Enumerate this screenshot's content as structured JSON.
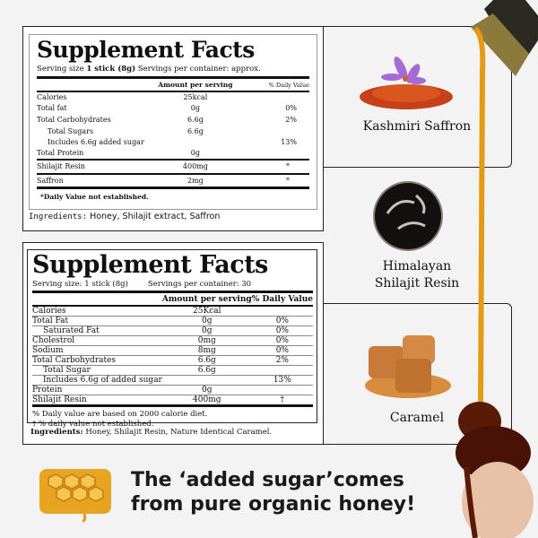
{
  "facts1": {
    "title": "Supplement Facts",
    "serving_label": "Serving size",
    "serving_value": "1 stick (8g)",
    "servings_container": "Servings per container: approx.",
    "header_amount": "Amount per serving",
    "header_dv": "% Daily Value",
    "rows": [
      {
        "name": "Calories",
        "amount": "25kcal",
        "dv": ""
      },
      {
        "name": "Total fat",
        "amount": "0g",
        "dv": "0%"
      },
      {
        "name": "Total Carbohydrates",
        "amount": "6.6g",
        "dv": "2%"
      },
      {
        "name": "Total Sugars",
        "amount": "6.6g",
        "dv": ""
      },
      {
        "name": "Includes 6.6g added sugar",
        "amount": "",
        "dv": "13%"
      },
      {
        "name": "Total Protein",
        "amount": "0g",
        "dv": ""
      },
      {
        "name": "Shilajit Resin",
        "amount": "400mg",
        "dv": "*"
      },
      {
        "name": "Saffron",
        "amount": "2mg",
        "dv": "*"
      }
    ],
    "footnote": "*Daily Value not established.",
    "ingredients_label": "Ingredients:",
    "ingredients": "Honey, Shilajit extract, Saffron"
  },
  "facts2": {
    "title": "Supplement Facts",
    "serving_size": "Serving size: 1 stick (8g)",
    "servings_container": "Servings per container: 30",
    "header_amount": "Amount per serving",
    "header_dv": "% Daily Value",
    "rows": [
      {
        "name": "Calories",
        "amount": "25Kcal",
        "dv": ""
      },
      {
        "name": "Total Fat",
        "amount": "0g",
        "dv": "0%"
      },
      {
        "name": "Saturated Fat",
        "amount": "0g",
        "dv": "0%"
      },
      {
        "name": "Cholestrol",
        "amount": "0mg",
        "dv": "0%"
      },
      {
        "name": "Sodium",
        "amount": "8mg",
        "dv": "0%"
      },
      {
        "name": "Total Carbohydrates",
        "amount": "6.6g",
        "dv": "2%"
      },
      {
        "name": "Total Sugar",
        "amount": "6.6g",
        "dv": ""
      },
      {
        "name": "Includes 6.6g of added sugar",
        "amount": "",
        "dv": "13%"
      },
      {
        "name": "Protein",
        "amount": "0g",
        "dv": ""
      },
      {
        "name": "Shilajit Resin",
        "amount": "400mg",
        "dv": "†"
      }
    ],
    "note1": "% Daily value are based on 2000 calorie diet.",
    "note2": "†  % daily value not established.",
    "ingredients_label": "Ingredients:",
    "ingredients": "Honey, Shilajit Resin, Nature Identical Caramel."
  },
  "ingredients_panels": [
    {
      "label": "Kashmiri Saffron",
      "icon": "saffron-image"
    },
    {
      "label_line1": "Himalayan",
      "label_line2": "Shilajit Resin",
      "icon": "shilajit-image"
    },
    {
      "label": "Caramel",
      "icon": "caramel-image"
    }
  ],
  "tagline": {
    "line1": "The ‘added sugar’comes",
    "line2": "from pure organic honey!"
  },
  "colors": {
    "background": "#f3f3f3",
    "honey": "#e39a14",
    "resin": "#5a1a08"
  }
}
